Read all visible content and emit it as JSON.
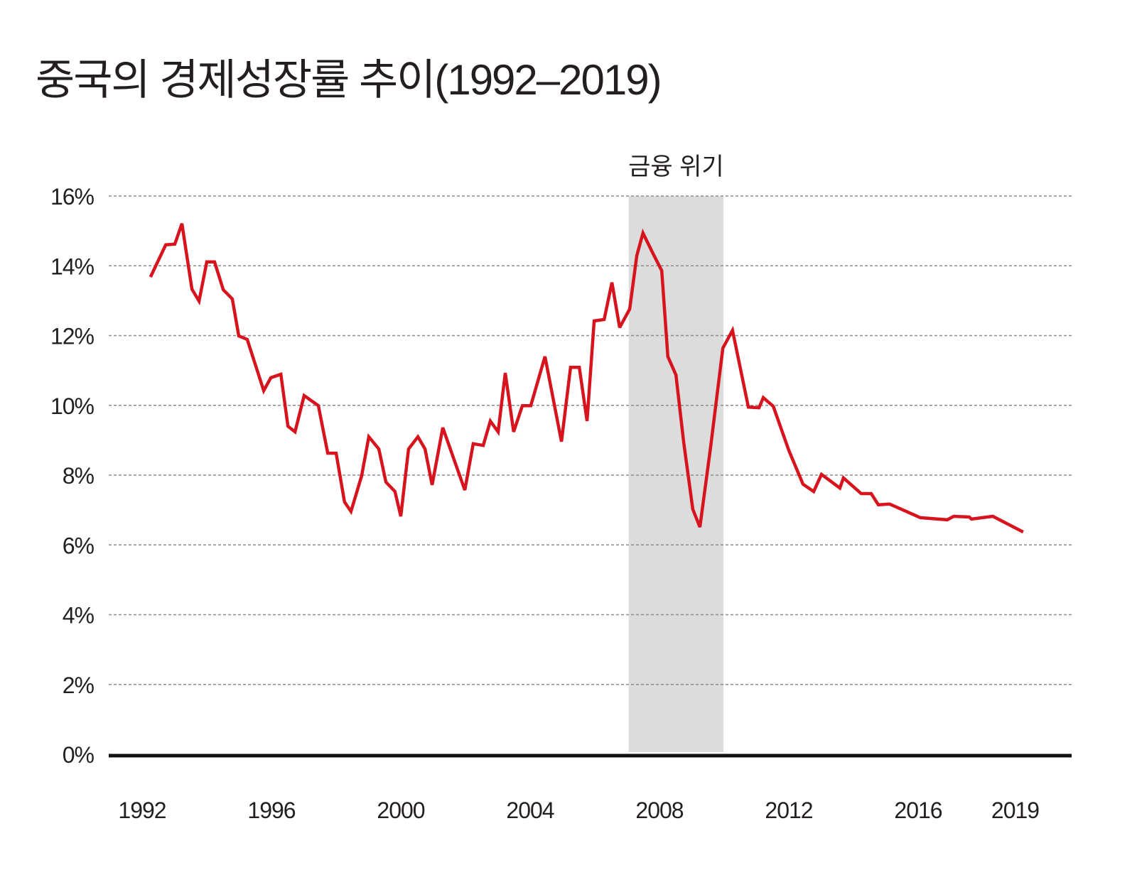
{
  "chart_data": {
    "type": "line",
    "title": "중국의 경제성장률 추이(1992–2019)",
    "xlabel": "",
    "ylabel": "",
    "ylim": [
      0,
      16
    ],
    "xlim": [
      1991,
      2020.75
    ],
    "grid": true,
    "y_ticks": [
      {
        "value": 0,
        "label": "0%"
      },
      {
        "value": 2,
        "label": "2%"
      },
      {
        "value": 4,
        "label": "4%"
      },
      {
        "value": 6,
        "label": "6%"
      },
      {
        "value": 8,
        "label": "8%"
      },
      {
        "value": 10,
        "label": "10%"
      },
      {
        "value": 12,
        "label": "12%"
      },
      {
        "value": 14,
        "label": "14%"
      },
      {
        "value": 16,
        "label": "16%"
      }
    ],
    "x_ticks": [
      {
        "value": 1992,
        "label": "1992"
      },
      {
        "value": 1996,
        "label": "1996"
      },
      {
        "value": 2000,
        "label": "2000"
      },
      {
        "value": 2004,
        "label": "2004"
      },
      {
        "value": 2008,
        "label": "2008"
      },
      {
        "value": 2012,
        "label": "2012"
      },
      {
        "value": 2016,
        "label": "2016"
      },
      {
        "value": 2019,
        "label": "2019"
      }
    ],
    "shaded_region": {
      "label": "금융 위기",
      "x0": 2007.05,
      "x1": 2009.98,
      "color": "#dcdcdc"
    },
    "series": [
      {
        "name": "GDP growth",
        "color": "#d7141e",
        "x": [
          1992.26,
          1992.73,
          1993.01,
          1993.23,
          1993.54,
          1993.76,
          1994.0,
          1994.24,
          1994.51,
          1994.79,
          1994.99,
          1995.25,
          1995.76,
          1995.98,
          1996.29,
          1996.51,
          1996.73,
          1997.01,
          1997.45,
          1997.74,
          1998.0,
          1998.26,
          1998.46,
          1998.79,
          1999.01,
          1999.32,
          1999.54,
          1999.82,
          2000.0,
          2000.24,
          2000.53,
          2000.75,
          2000.97,
          2001.3,
          2001.98,
          2002.24,
          2002.55,
          2002.77,
          2003.01,
          2003.23,
          2003.49,
          2003.76,
          2004.02,
          2004.46,
          2004.97,
          2005.25,
          2005.52,
          2005.76,
          2005.98,
          2006.29,
          2006.53,
          2006.77,
          2007.08,
          2007.3,
          2007.49,
          2007.78,
          2008.07,
          2008.26,
          2008.51,
          2008.75,
          2009.03,
          2009.25,
          2009.58,
          2009.96,
          2010.26,
          2010.75,
          2011.08,
          2011.21,
          2011.52,
          2012.0,
          2012.44,
          2012.77,
          2013.01,
          2013.58,
          2013.69,
          2014.24,
          2014.55,
          2014.77,
          2015.12,
          2016.07,
          2016.9,
          2017.1,
          2017.58,
          2017.65,
          2018.31,
          2019.25
        ],
        "values": [
          13.68,
          14.6,
          14.62,
          15.21,
          13.33,
          12.99,
          14.11,
          14.11,
          13.31,
          13.05,
          11.99,
          11.89,
          10.42,
          10.79,
          10.89,
          9.4,
          9.24,
          10.28,
          9.99,
          8.63,
          8.63,
          7.23,
          6.96,
          7.98,
          9.1,
          8.75,
          7.8,
          7.53,
          6.82,
          8.75,
          9.1,
          8.75,
          7.72,
          9.36,
          7.57,
          8.9,
          8.85,
          9.55,
          9.24,
          10.93,
          9.24,
          9.99,
          9.99,
          11.4,
          8.96,
          11.09,
          11.09,
          9.55,
          12.42,
          12.46,
          13.52,
          12.23,
          12.76,
          14.29,
          14.94,
          14.39,
          13.86,
          11.4,
          10.87,
          8.94,
          7.02,
          6.51,
          8.79,
          11.64,
          12.15,
          9.95,
          9.93,
          10.22,
          9.97,
          8.71,
          7.74,
          7.53,
          8.02,
          7.63,
          7.92,
          7.47,
          7.47,
          7.15,
          7.17,
          6.78,
          6.72,
          6.82,
          6.8,
          6.74,
          6.82,
          6.37
        ]
      }
    ]
  }
}
